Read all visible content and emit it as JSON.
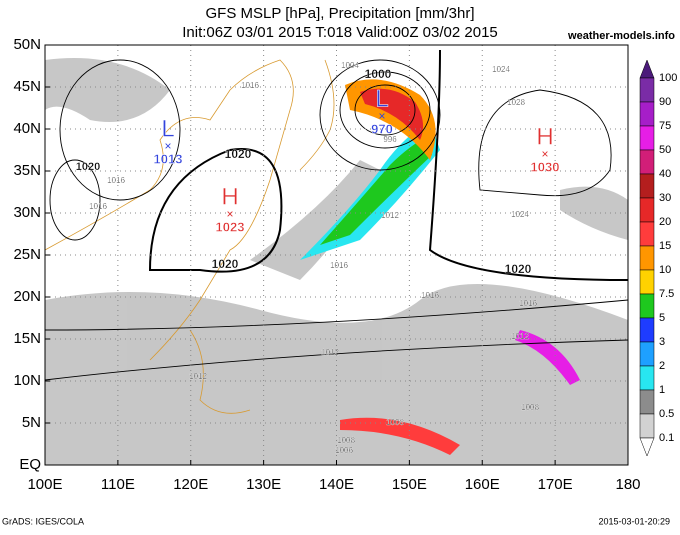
{
  "header": {
    "title": "GFS MSLP [hPa], Precipitation [mm/3hr]",
    "subtitle": "Init:06Z 03/01 2015 T:018 Valid:00Z 03/02 2015",
    "site": "weather-models.info"
  },
  "map": {
    "lat_labels": [
      "50N",
      "45N",
      "40N",
      "35N",
      "30N",
      "25N",
      "20N",
      "15N",
      "10N",
      "5N",
      "EQ"
    ],
    "lon_labels": [
      "100E",
      "110E",
      "120E",
      "130E",
      "140E",
      "150E",
      "160E",
      "170E",
      "180"
    ],
    "centers": [
      {
        "letter": "L",
        "value": 1013,
        "color": "#3344dd"
      },
      {
        "letter": "H",
        "value": 1023,
        "color": "#e03030"
      },
      {
        "letter": "L",
        "value": 970,
        "color": "#3344dd"
      },
      {
        "letter": "H",
        "value": 1030,
        "color": "#e03030"
      }
    ],
    "isobar_labels": [
      "1020",
      "1020",
      "1020",
      "1020",
      "1000",
      "1004",
      "1016",
      "1016",
      "1016",
      "1016",
      "1016",
      "1016",
      "1024",
      "1024",
      "1028",
      "1012",
      "1012",
      "1012",
      "1012",
      "1008",
      "1008",
      "1008",
      "996",
      "1006"
    ]
  },
  "legend": {
    "labels": [
      "100",
      "90",
      "75",
      "50",
      "40",
      "30",
      "20",
      "15",
      "10",
      "7.5",
      "5",
      "3",
      "2",
      "1",
      "0.5",
      "0.1"
    ],
    "colors": [
      "#4b1a7a",
      "#7a2ca6",
      "#a61ec8",
      "#e61ee6",
      "#d21e78",
      "#b41e1e",
      "#e62828",
      "#ff3c3c",
      "#ff9600",
      "#ffd200",
      "#1ec81e",
      "#1e3cff",
      "#1ea0ff",
      "#28e6f0",
      "#8c8c8c",
      "#d2d2d2"
    ]
  },
  "footer": {
    "left": "GrADS: IGES/COLA",
    "right": "2015-03-01-20:29"
  }
}
